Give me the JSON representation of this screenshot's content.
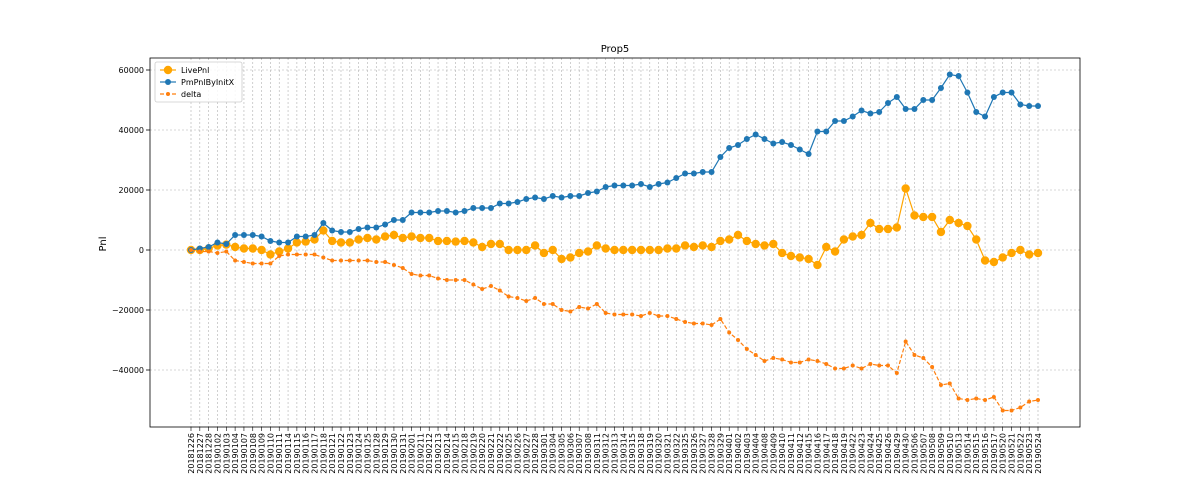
{
  "chart_data": {
    "type": "line",
    "title": "Prop5",
    "xlabel": "",
    "ylabel": "Pnl",
    "ylim": [
      -59000,
      64000
    ],
    "yticks": [
      -40000,
      -20000,
      0,
      20000,
      40000,
      60000
    ],
    "ytick_labels": [
      "−40000",
      "−20000",
      "0",
      "20000",
      "40000",
      "60000"
    ],
    "grid": true,
    "legend_position": "top-left",
    "x": [
      "20181226",
      "20181227",
      "20181228",
      "20190102",
      "20190103",
      "20190104",
      "20190107",
      "20190108",
      "20190109",
      "20190110",
      "20190111",
      "20190114",
      "20190115",
      "20190116",
      "20190117",
      "20190118",
      "20190121",
      "20190122",
      "20190123",
      "20190124",
      "20190125",
      "20190128",
      "20190129",
      "20190130",
      "20190131",
      "20190201",
      "20190211",
      "20190212",
      "20190213",
      "20190214",
      "20190215",
      "20190218",
      "20190219",
      "20190220",
      "20190221",
      "20190222",
      "20190225",
      "20190226",
      "20190227",
      "20190228",
      "20190301",
      "20190304",
      "20190305",
      "20190306",
      "20190307",
      "20190308",
      "20190311",
      "20190312",
      "20190313",
      "20190314",
      "20190315",
      "20190318",
      "20190319",
      "20190320",
      "20190321",
      "20190322",
      "20190325",
      "20190326",
      "20190327",
      "20190328",
      "20190329",
      "20190401",
      "20190402",
      "20190403",
      "20190404",
      "20190408",
      "20190409",
      "20190410",
      "20190411",
      "20190412",
      "20190415",
      "20190416",
      "20190417",
      "20190418",
      "20190419",
      "20190422",
      "20190423",
      "20190424",
      "20190425",
      "20190426",
      "20190429",
      "20190430",
      "20190506",
      "20190507",
      "20190508",
      "20190509",
      "20190510",
      "20190513",
      "20190514",
      "20190515",
      "20190516",
      "20190517",
      "20190520",
      "20190521",
      "20190522",
      "20190523",
      "20190524"
    ],
    "series": [
      {
        "name": "LivePnl",
        "color": "#ffa500",
        "values": [
          0,
          0,
          500,
          1500,
          1800,
          1000,
          500,
          500,
          0,
          -1500,
          -500,
          500,
          2500,
          2800,
          3500,
          6500,
          3000,
          2500,
          2500,
          3500,
          4000,
          3500,
          4500,
          5000,
          4000,
          4500,
          4000,
          4000,
          3000,
          3000,
          2800,
          3000,
          2500,
          1000,
          2000,
          2000,
          0,
          0,
          0,
          1500,
          -1000,
          0,
          -3000,
          -2500,
          -1000,
          -500,
          1500,
          500,
          0,
          0,
          0,
          0,
          0,
          0,
          500,
          500,
          1500,
          1000,
          1500,
          1000,
          3000,
          3500,
          5000,
          3000,
          2000,
          1500,
          2000,
          -1000,
          -2000,
          -2500,
          -3000,
          -5000,
          1000,
          -500,
          3500,
          4500,
          5000,
          9000,
          7000,
          7000,
          7500,
          20500,
          11500,
          11000,
          11000,
          6000,
          10000,
          9000,
          8000,
          3500,
          -3500,
          -4000,
          -2500,
          -1000,
          0,
          -1500,
          -1000
        ],
        "style": "solid",
        "marker": "large-circle"
      },
      {
        "name": "PmPnlByInitX",
        "color": "#1f77b4",
        "values": [
          0,
          500,
          1000,
          2500,
          2000,
          5000,
          5000,
          5000,
          4500,
          3000,
          2500,
          2500,
          4500,
          4500,
          5000,
          9000,
          6500,
          6000,
          6000,
          7000,
          7500,
          7500,
          8500,
          10000,
          10000,
          12500,
          12500,
          12500,
          13000,
          13000,
          12500,
          13000,
          14000,
          14000,
          14000,
          15500,
          15500,
          16000,
          17000,
          17500,
          17000,
          18000,
          17500,
          18000,
          18000,
          19000,
          19500,
          21000,
          21500,
          21500,
          21500,
          22000,
          21000,
          22000,
          22500,
          24000,
          25500,
          25500,
          26000,
          26000,
          31000,
          34000,
          35000,
          37000,
          38500,
          37000,
          35500,
          36000,
          35000,
          33500,
          32000,
          39500,
          39500,
          43000,
          43000,
          44500,
          46500,
          45500,
          46000,
          49000,
          51000,
          47000,
          47000,
          50000,
          50000,
          54000,
          58500,
          58000,
          52500,
          46000,
          44500,
          51000,
          52500,
          52500,
          48500,
          48000,
          48000
        ],
        "style": "solid",
        "marker": "circle"
      },
      {
        "name": "delta",
        "color": "#ff7f0e",
        "values": [
          0,
          -500,
          -500,
          -1000,
          -500,
          -3500,
          -4000,
          -4500,
          -4500,
          -4500,
          -2000,
          -1500,
          -1500,
          -1500,
          -1500,
          -2500,
          -3500,
          -3500,
          -3500,
          -3500,
          -3500,
          -4000,
          -4000,
          -5000,
          -6000,
          -8000,
          -8500,
          -8500,
          -9500,
          -10000,
          -10000,
          -10000,
          -11500,
          -13000,
          -12000,
          -13500,
          -15500,
          -16000,
          -17000,
          -16000,
          -18000,
          -18000,
          -20000,
          -20500,
          -19000,
          -19500,
          -18000,
          -21000,
          -21500,
          -21500,
          -21500,
          -22000,
          -21000,
          -22000,
          -22000,
          -23000,
          -24000,
          -24500,
          -24500,
          -25000,
          -23000,
          -27500,
          -30000,
          -33000,
          -35000,
          -37000,
          -36000,
          -36500,
          -37500,
          -37500,
          -36500,
          -37000,
          -38000,
          -39500,
          -39500,
          -38500,
          -39500,
          -38000,
          -38500,
          -38500,
          -41000,
          -30500,
          -35000,
          -36000,
          -39000,
          -45000,
          -44500,
          -49500,
          -50000,
          -49500,
          -50000,
          -49000,
          -53500,
          -53500,
          -52500,
          -50500,
          -50000
        ],
        "style": "dashed",
        "marker": "small-circle"
      }
    ]
  }
}
